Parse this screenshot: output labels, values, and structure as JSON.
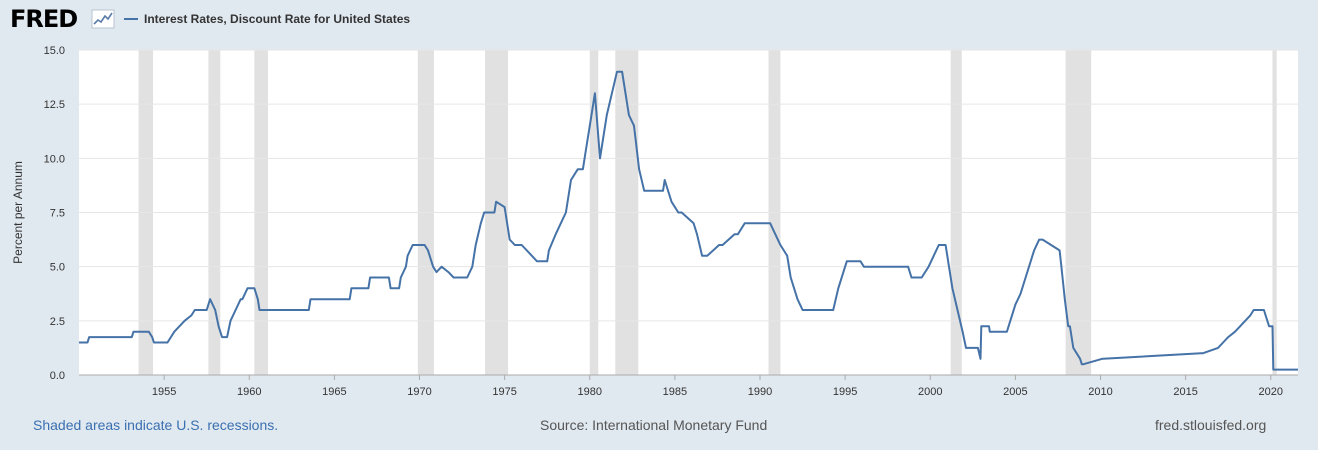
{
  "header": {
    "logo_text": "FRED",
    "legend_label": "Interest Rates, Discount Rate for United States"
  },
  "footer": {
    "recessions_note": "Shaded areas indicate U.S. recessions.",
    "source": "Source: International Monetary Fund",
    "site": "fred.stlouisfed.org"
  },
  "colors": {
    "series": "#4572a7",
    "plot_background": "#ffffff",
    "page_background": "#e1e9f0",
    "recession_shade": "#e1e1e1",
    "grid": "#e6e6e6"
  },
  "chart_data": {
    "type": "line",
    "ylabel": "Percent per Annum",
    "xlim": [
      1950,
      2021.6
    ],
    "ylim": [
      0,
      15
    ],
    "x_ticks": [
      1955,
      1960,
      1965,
      1970,
      1975,
      1980,
      1985,
      1990,
      1995,
      2000,
      2005,
      2010,
      2015,
      2020
    ],
    "y_ticks": [
      0.0,
      2.5,
      5.0,
      7.5,
      10.0,
      12.5,
      15.0
    ],
    "y_tick_labels": [
      "0.0",
      "2.5",
      "5.0",
      "7.5",
      "10.0",
      "12.5",
      "15.0"
    ],
    "grid": true,
    "recessions": [
      [
        1953.5,
        1954.35
      ],
      [
        1957.6,
        1958.3
      ],
      [
        1960.3,
        1961.1
      ],
      [
        1969.9,
        1970.85
      ],
      [
        1973.85,
        1975.2
      ],
      [
        1980.0,
        1980.5
      ],
      [
        1981.5,
        1982.85
      ],
      [
        1990.5,
        1991.2
      ],
      [
        2001.2,
        2001.85
      ],
      [
        2007.95,
        2009.45
      ],
      [
        2020.1,
        2020.35
      ]
    ],
    "series": [
      {
        "x": [
          1950.0,
          1950.5,
          1950.6,
          1953.1,
          1953.2,
          1954.1,
          1954.3,
          1954.4,
          1955.2,
          1955.4,
          1955.6,
          1955.9,
          1956.2,
          1956.6,
          1956.8,
          1957.5,
          1957.7,
          1958.0,
          1958.2,
          1958.4,
          1958.7,
          1958.9,
          1959.2,
          1959.5,
          1959.6,
          1959.9,
          1960.3,
          1960.5,
          1960.6,
          1961.0,
          1963.5,
          1963.6,
          1965.9,
          1966.0,
          1967.0,
          1967.1,
          1968.2,
          1968.3,
          1968.8,
          1968.9,
          1969.2,
          1969.3,
          1969.6,
          1969.9,
          1970.3,
          1970.5,
          1970.8,
          1971.0,
          1971.3,
          1971.7,
          1972.0,
          1972.3,
          1972.8,
          1973.1,
          1973.3,
          1973.6,
          1973.8,
          1974.4,
          1974.5,
          1975.0,
          1975.3,
          1975.6,
          1976.0,
          1976.6,
          1976.9,
          1977.5,
          1977.6,
          1978.0,
          1978.3,
          1978.6,
          1978.9,
          1979.3,
          1979.6,
          1979.8,
          1980.1,
          1980.3,
          1980.5,
          1980.6,
          1980.8,
          1981.0,
          1981.3,
          1981.6,
          1981.9,
          1982.3,
          1982.6,
          1982.9,
          1983.2,
          1984.3,
          1984.4,
          1984.8,
          1985.2,
          1985.4,
          1986.1,
          1986.3,
          1986.6,
          1986.9,
          1987.6,
          1987.8,
          1988.5,
          1988.7,
          1989.1,
          1990.6,
          1990.9,
          1991.2,
          1991.6,
          1991.8,
          1992.0,
          1992.2,
          1992.5,
          1994.3,
          1994.6,
          1994.9,
          1995.1,
          1995.9,
          1996.1,
          1998.7,
          1998.9,
          1999.5,
          1999.7,
          1999.9,
          2000.2,
          2000.5,
          2000.9,
          2001.1,
          2001.3,
          2001.6,
          2001.9,
          2002.1,
          2002.8,
          2002.95,
          2003.0,
          2003.45,
          2003.5,
          2004.5,
          2004.7,
          2005.0,
          2005.3,
          2005.6,
          2005.9,
          2006.1,
          2006.4,
          2006.6,
          2007.6,
          2007.7,
          2007.9,
          2008.1,
          2008.2,
          2008.4,
          2008.8,
          2008.9,
          2009.0,
          2010.1,
          2010.15,
          2015.9,
          2016.0,
          2016.9,
          2017.2,
          2017.5,
          2017.9,
          2018.2,
          2018.5,
          2018.8,
          2019.0,
          2019.6,
          2019.9,
          2020.1,
          2020.15,
          2021.6
        ],
        "y": [
          1.5,
          1.5,
          1.75,
          1.75,
          2.0,
          2.0,
          1.75,
          1.5,
          1.5,
          1.75,
          2.0,
          2.25,
          2.5,
          2.75,
          3.0,
          3.0,
          3.5,
          3.0,
          2.25,
          1.75,
          1.75,
          2.5,
          3.0,
          3.5,
          3.5,
          4.0,
          4.0,
          3.5,
          3.0,
          3.0,
          3.0,
          3.5,
          3.5,
          4.0,
          4.0,
          4.5,
          4.5,
          4.0,
          4.0,
          4.5,
          5.0,
          5.5,
          6.0,
          6.0,
          6.0,
          5.75,
          5.0,
          4.75,
          5.0,
          4.75,
          4.5,
          4.5,
          4.5,
          5.0,
          6.0,
          7.0,
          7.5,
          7.5,
          8.0,
          7.75,
          6.25,
          6.0,
          6.0,
          5.5,
          5.25,
          5.25,
          5.75,
          6.5,
          7.0,
          7.5,
          9.0,
          9.5,
          9.5,
          10.5,
          12.0,
          13.0,
          11.0,
          10.0,
          11.0,
          12.0,
          13.0,
          14.0,
          14.0,
          12.0,
          11.5,
          9.5,
          8.5,
          8.5,
          9.0,
          8.0,
          7.5,
          7.5,
          7.0,
          6.5,
          5.5,
          5.5,
          6.0,
          6.0,
          6.5,
          6.5,
          7.0,
          7.0,
          6.5,
          6.0,
          5.5,
          4.5,
          4.0,
          3.5,
          3.0,
          3.0,
          4.0,
          4.75,
          5.25,
          5.25,
          5.0,
          5.0,
          4.5,
          4.5,
          4.75,
          5.0,
          5.5,
          6.0,
          6.0,
          5.0,
          4.0,
          3.0,
          2.0,
          1.25,
          1.25,
          0.75,
          2.25,
          2.25,
          2.0,
          2.0,
          2.5,
          3.25,
          3.75,
          4.5,
          5.25,
          5.75,
          6.25,
          6.25,
          5.75,
          5.0,
          3.5,
          2.25,
          2.25,
          1.25,
          0.75,
          0.5,
          0.5,
          0.75,
          0.75,
          1.0,
          1.0,
          1.25,
          1.5,
          1.75,
          2.0,
          2.25,
          2.5,
          2.75,
          3.0,
          3.0,
          2.25,
          2.25,
          0.25,
          0.25
        ]
      }
    ]
  }
}
